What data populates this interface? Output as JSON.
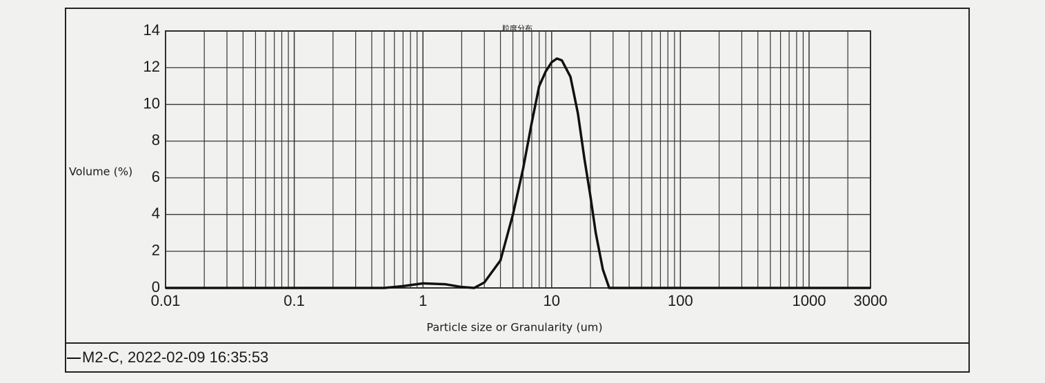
{
  "chart_data": {
    "type": "line",
    "title": "粒度分布",
    "x_label": "Particle size or Granularity (um)",
    "y_label": "Volume (%)",
    "x_scale": "log",
    "xlim": [
      0.01,
      3000
    ],
    "xticks": [
      0.01,
      0.1,
      1,
      10,
      100,
      1000,
      3000
    ],
    "ylim": [
      0,
      14
    ],
    "yticks": [
      0,
      2,
      4,
      6,
      8,
      10,
      12,
      14
    ],
    "grid": true,
    "minor_grid": true,
    "x": [
      0.01,
      0.1,
      0.5,
      0.7,
      1,
      1.5,
      2,
      2.5,
      3,
      4,
      5,
      6,
      7,
      8,
      9,
      10,
      11,
      12,
      14,
      16,
      18,
      20,
      22,
      25,
      28,
      50,
      3000
    ],
    "series": [
      {
        "name": "M2-C, 2022-02-09 16:35:53",
        "color": "#111111",
        "values": [
          0,
          0,
          0,
          0.1,
          0.25,
          0.2,
          0.05,
          0,
          0.3,
          1.5,
          4,
          6.5,
          9,
          11,
          11.8,
          12.3,
          12.5,
          12.4,
          11.5,
          9.5,
          7,
          5,
          3,
          1,
          0,
          0,
          0
        ]
      }
    ]
  }
}
